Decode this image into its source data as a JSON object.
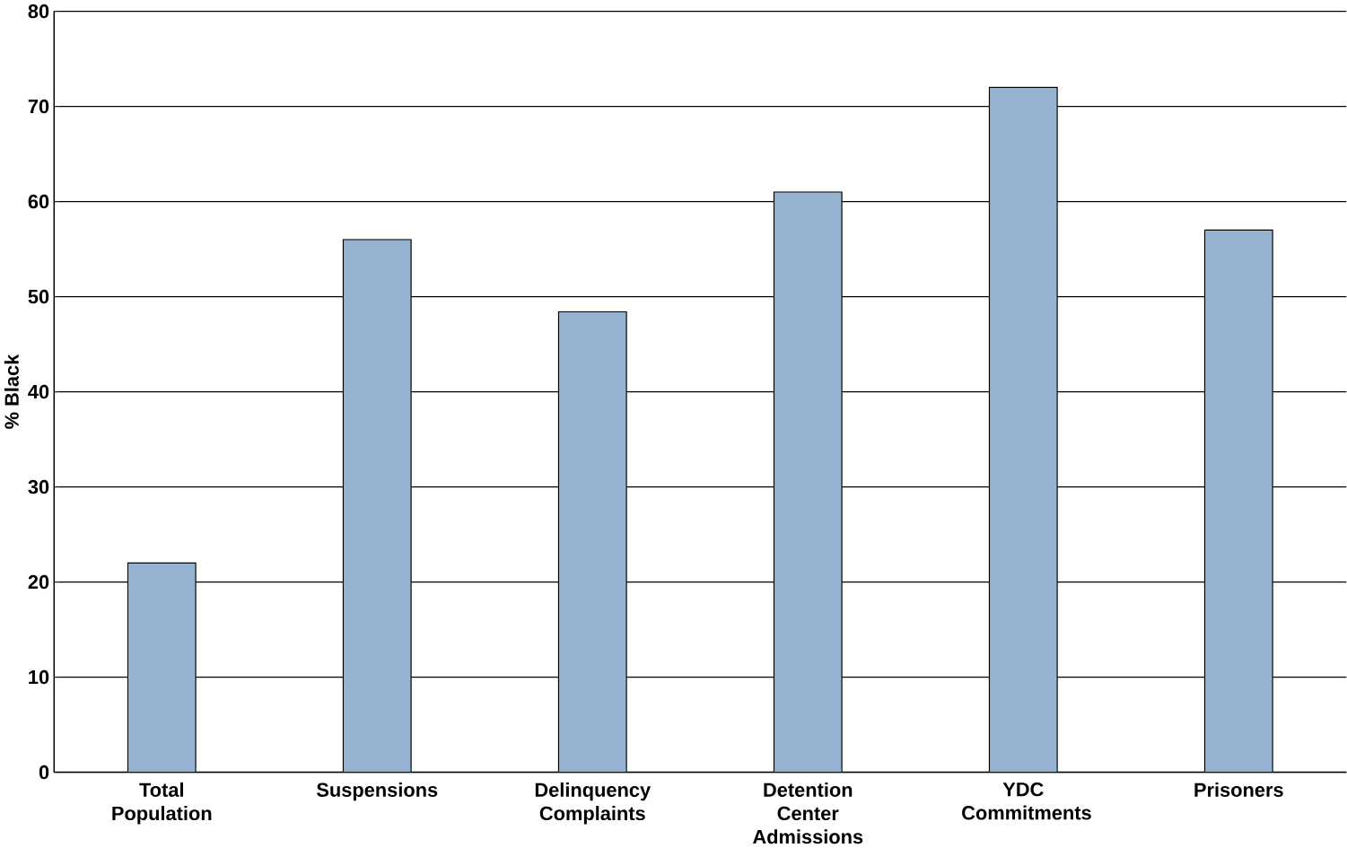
{
  "chart_data": {
    "type": "bar",
    "ylabel": "% Black",
    "categories": [
      "Total Population",
      "Suspensions",
      "Delinquency Complaints",
      "Detention Center Admissions",
      "YDC Commitments",
      "Prisoners"
    ],
    "values": [
      22,
      56,
      48.4,
      61,
      72,
      57
    ],
    "color": "#95b3d0",
    "ylim": [
      0,
      80
    ],
    "yticks": [
      0,
      10,
      20,
      30,
      40,
      50,
      60,
      70,
      80
    ],
    "grid": "y"
  }
}
